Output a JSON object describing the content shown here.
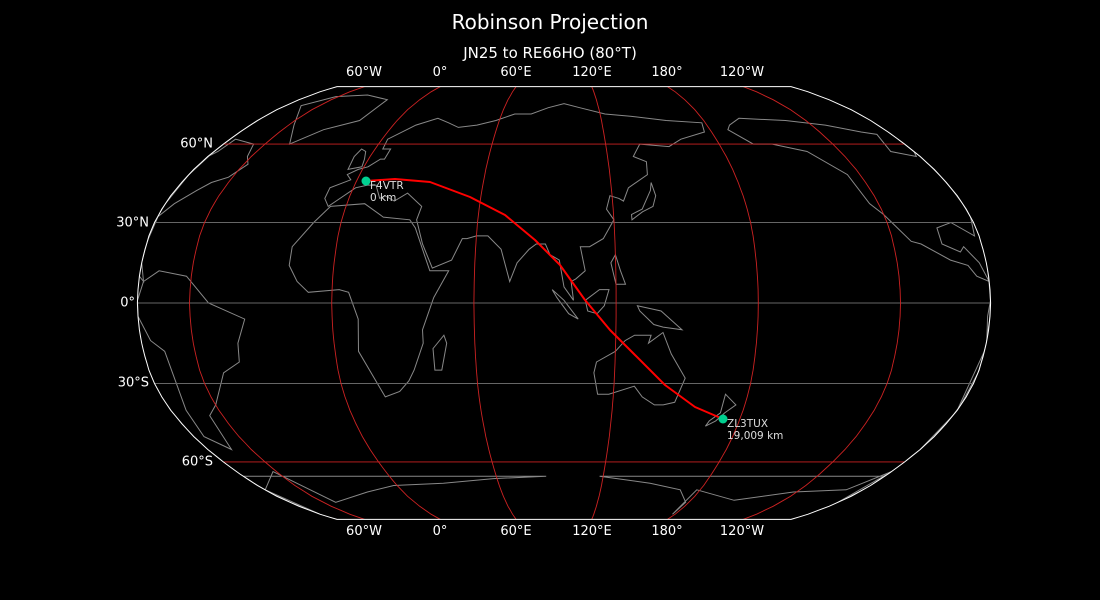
{
  "title": "Robinson Projection",
  "subtitle": "JN25 to RE66HO (80°T)",
  "projection": "robinson",
  "colors": {
    "background": "#000000",
    "coastline": "#888888",
    "path": "#ff0000",
    "marker": "#00d090",
    "graticule_major": "#cc2222",
    "graticule_minor": "#666666",
    "outline": "#ffffff"
  },
  "top_lon_labels": [
    "60°W",
    "0°",
    "60°E",
    "120°E",
    "180°",
    "120°W"
  ],
  "bottom_lon_labels": [
    "60°W",
    "0°",
    "60°E",
    "120°E",
    "180°",
    "120°W"
  ],
  "lat_labels": [
    "60°N",
    "30°N",
    "0°",
    "30°S",
    "60°S"
  ],
  "start": {
    "call": "F4VTR",
    "distance": "0 km",
    "lon": 2,
    "lat": 46
  },
  "end": {
    "call": "ZL3TUX",
    "distance": "19,009 km",
    "lon": 172.6,
    "lat": -43.5
  }
}
